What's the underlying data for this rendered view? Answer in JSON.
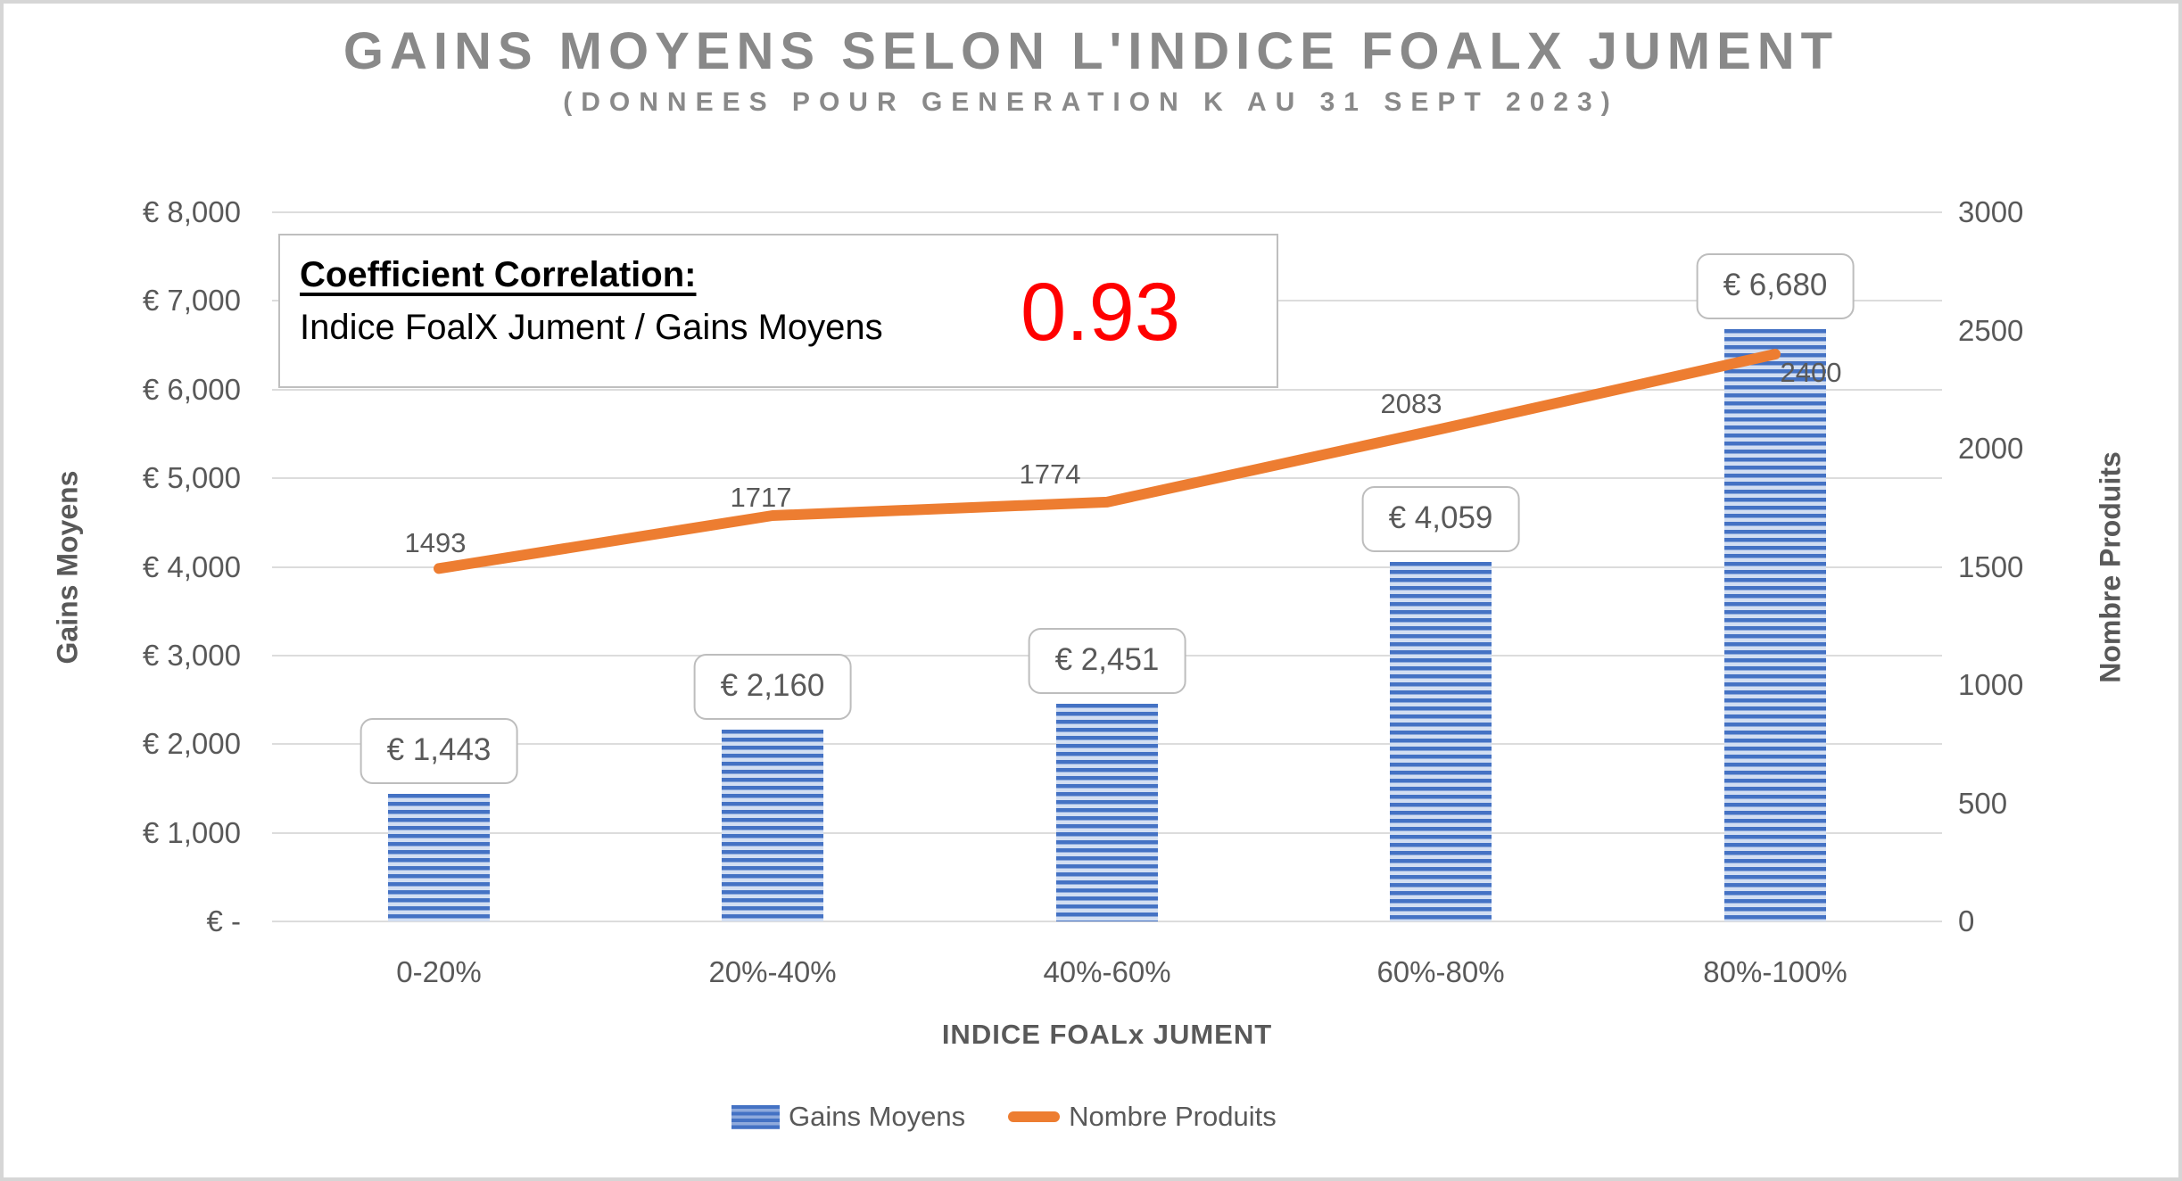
{
  "title": "GAINS MOYENS SELON L'INDICE FOALX JUMENT",
  "subtitle": "(DONNEES POUR GENERATION K AU 31 SEPT 2023)",
  "correlation_box": {
    "heading": "Coefficient Correlation:",
    "subject": "Indice FoalX Jument / Gains Moyens",
    "value": "0.93",
    "value_color": "#FF0000"
  },
  "chart_data": {
    "type": "combo",
    "categories": [
      "0-20%",
      "20%-40%",
      "40%-60%",
      "60%-80%",
      "80%-100%"
    ],
    "series": [
      {
        "name": "Gains Moyens",
        "type": "bar",
        "axis": "left",
        "values": [
          1443,
          2160,
          2451,
          4059,
          6680
        ],
        "labels": [
          "€ 1,443",
          "€ 2,160",
          "€ 2,451",
          "€ 4,059",
          "€ 6,680"
        ],
        "color": "#4472C4"
      },
      {
        "name": "Nombre Produits",
        "type": "line",
        "axis": "right",
        "values": [
          1493,
          1717,
          1774,
          2083,
          2400
        ],
        "labels": [
          "1493",
          "1717",
          "1774",
          "2083",
          "2400"
        ],
        "color": "#ED7D31"
      }
    ],
    "left_axis": {
      "title": "Gains Moyens",
      "ticks": [
        "€ 8,000",
        "€ 7,000",
        "€ 6,000",
        "€ 5,000",
        "€ 4,000",
        "€ 3,000",
        "€ 2,000",
        "€ 1,000",
        "€ -"
      ],
      "tick_values": [
        8000,
        7000,
        6000,
        5000,
        4000,
        3000,
        2000,
        1000,
        0
      ],
      "range": [
        0,
        8000
      ]
    },
    "right_axis": {
      "title": "Nombre Produits",
      "ticks": [
        "3000",
        "2500",
        "2000",
        "1500",
        "1000",
        "500",
        "0"
      ],
      "tick_values": [
        3000,
        2500,
        2000,
        1500,
        1000,
        500,
        0
      ],
      "range": [
        0,
        3000
      ]
    },
    "x_axis": {
      "title": "INDICE FOALx JUMENT"
    },
    "legend": [
      {
        "label": "Gains Moyens",
        "swatch": "bar"
      },
      {
        "label": "Nombre Produits",
        "swatch": "line"
      }
    ],
    "grid": "horizontal",
    "legend_position": "bottom",
    "palette": {
      "bar_stripe_dark": "#4472C4",
      "bar_stripe_light": "#D2DEF2",
      "line_orange": "#ED7D31",
      "gridline": "#DCDCDC",
      "title_gray": "#898989",
      "axis_text": "#595959"
    }
  }
}
